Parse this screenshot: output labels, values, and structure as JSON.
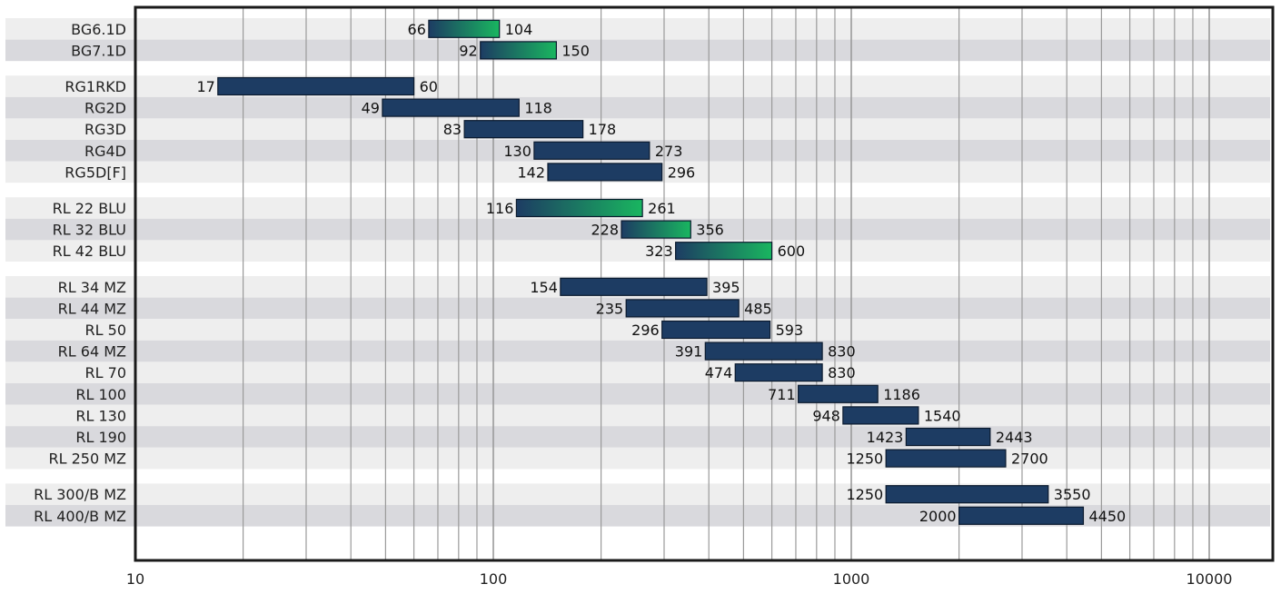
{
  "chart_data": {
    "type": "bar",
    "orientation": "horizontal-range",
    "x_scale": "log",
    "xlim": [
      10,
      15000
    ],
    "x_ticks": [
      "10",
      "100",
      "1000",
      "10000"
    ],
    "grid": "vertical",
    "colors": {
      "range_bar": "#1d3c63",
      "gradient_start": "#1d3c63",
      "gradient_end": "#19b660",
      "row_light": "#eeeeee",
      "row_dark": "#d9d9dd"
    },
    "groups": [
      {
        "rows": [
          {
            "label": "BG6.1D",
            "min": 66,
            "max": 104,
            "min_label": "66",
            "max_label": "104",
            "style": "gradient"
          },
          {
            "label": "BG7.1D",
            "min": 92,
            "max": 150,
            "min_label": "92",
            "max_label": "150",
            "style": "gradient"
          }
        ]
      },
      {
        "rows": [
          {
            "label": "RG1RKD",
            "min": 17,
            "max": 60,
            "min_label": "17",
            "max_label": "60",
            "style": "solid"
          },
          {
            "label": "RG2D",
            "min": 49,
            "max": 118,
            "min_label": "49",
            "max_label": "118",
            "style": "solid"
          },
          {
            "label": "RG3D",
            "min": 83,
            "max": 178,
            "min_label": "83",
            "max_label": "178",
            "style": "solid"
          },
          {
            "label": "RG4D",
            "min": 130,
            "max": 273,
            "min_label": "130",
            "max_label": "273",
            "style": "solid"
          },
          {
            "label": "RG5D[F]",
            "min": 142,
            "max": 296,
            "min_label": "142",
            "max_label": "296",
            "style": "solid"
          }
        ]
      },
      {
        "rows": [
          {
            "label": "RL 22 BLU",
            "min": 116,
            "max": 261,
            "min_label": "116",
            "max_label": "261",
            "style": "gradient"
          },
          {
            "label": "RL 32 BLU",
            "min": 228,
            "max": 356,
            "min_label": "228",
            "max_label": "356",
            "style": "gradient"
          },
          {
            "label": "RL 42 BLU",
            "min": 323,
            "max": 600,
            "min_label": "323",
            "max_label": "600",
            "style": "gradient"
          }
        ]
      },
      {
        "rows": [
          {
            "label": "RL 34 MZ",
            "min": 154,
            "max": 395,
            "min_label": "154",
            "max_label": "395",
            "style": "solid"
          },
          {
            "label": "RL 44 MZ",
            "min": 235,
            "max": 485,
            "min_label": "235",
            "max_label": "485",
            "style": "solid"
          },
          {
            "label": "RL 50",
            "min": 296,
            "max": 593,
            "min_label": "296",
            "max_label": "593",
            "style": "solid"
          },
          {
            "label": "RL 64 MZ",
            "min": 391,
            "max": 830,
            "min_label": "391",
            "max_label": "830",
            "style": "solid"
          },
          {
            "label": "RL 70",
            "min": 474,
            "max": 830,
            "min_label": "474",
            "max_label": "830",
            "style": "solid"
          },
          {
            "label": "RL 100",
            "min": 711,
            "max": 1186,
            "min_label": "711",
            "max_label": "1186",
            "style": "solid"
          },
          {
            "label": "RL 130",
            "min": 948,
            "max": 1540,
            "min_label": "948",
            "max_label": "1540",
            "style": "solid"
          },
          {
            "label": "RL 190",
            "min": 1423,
            "max": 2443,
            "min_label": "1423",
            "max_label": "2443",
            "style": "solid"
          },
          {
            "label": "RL 250 MZ",
            "min": 1250,
            "max": 2700,
            "min_label": "1250",
            "max_label": "2700",
            "style": "solid"
          }
        ]
      },
      {
        "rows": [
          {
            "label": "RL 300/B MZ",
            "min": 1250,
            "max": 3550,
            "min_label": "1250",
            "max_label": "3550",
            "style": "solid"
          },
          {
            "label": "RL 400/B MZ",
            "min": 2000,
            "max": 4450,
            "min_label": "2000",
            "max_label": "4450",
            "style": "solid"
          }
        ]
      }
    ]
  }
}
